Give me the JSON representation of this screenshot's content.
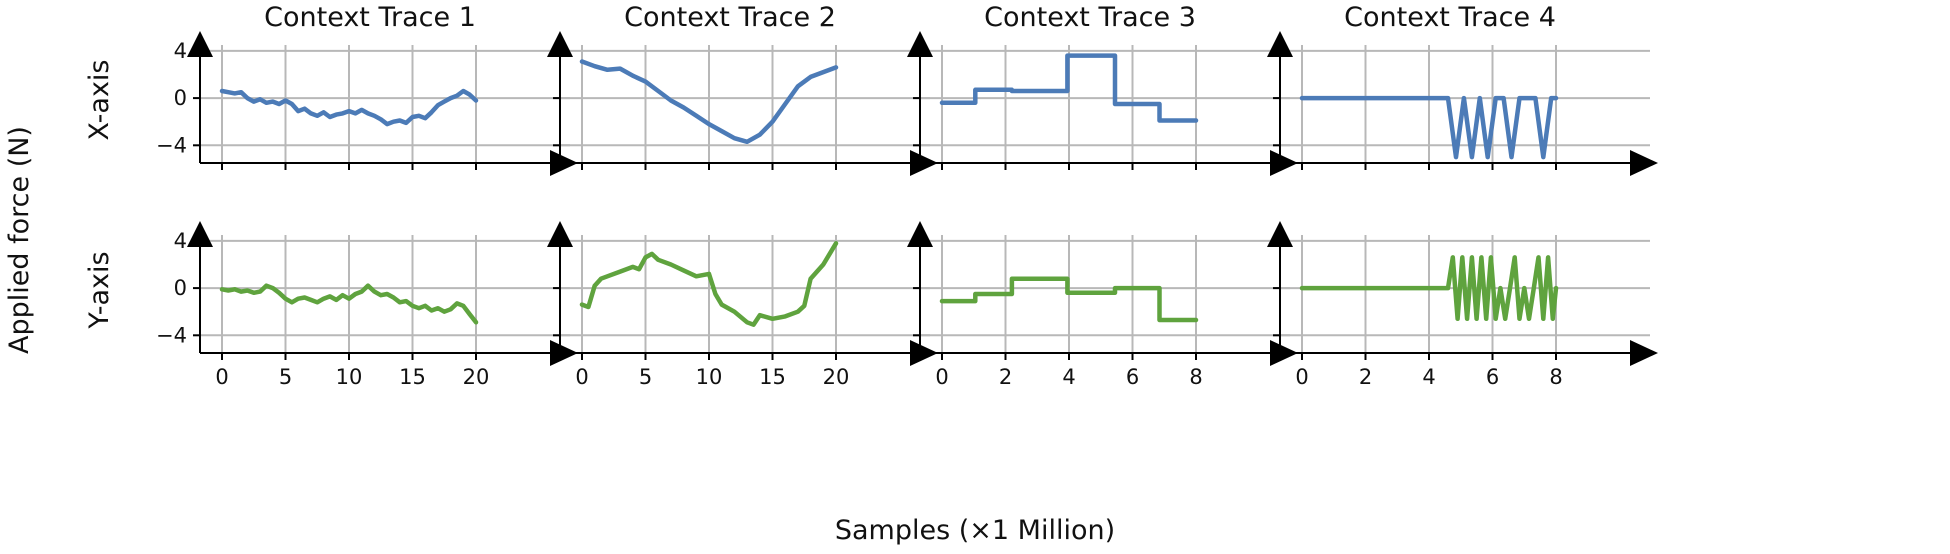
{
  "figure": {
    "ylabel": "Applied force (N)",
    "xlabel": "Samples (×1 Million)",
    "row_labels": [
      "X-axis",
      "Y-axis"
    ],
    "col_titles": [
      "Context Trace 1",
      "Context Trace 2",
      "Context Trace 3",
      "Context Trace 4"
    ]
  },
  "colors": {
    "x_axis": "#4c7bb7",
    "y_axis": "#5fa33e",
    "grid": "#b8b8b8",
    "axis": "#000000"
  },
  "chart_data": [
    {
      "type": "line",
      "title": "Context Trace 1",
      "row": "X-axis",
      "xlim": [
        0,
        20
      ],
      "ylim": [
        -5.5,
        4.5
      ],
      "xticks": [
        0,
        5,
        10,
        15,
        20
      ],
      "yticks": [
        -4,
        0,
        4
      ],
      "grid": true,
      "series": [
        {
          "x": [
            0,
            0.5,
            1,
            1.5,
            2,
            2.5,
            3,
            3.5,
            4,
            4.5,
            5,
            5.5,
            6,
            6.5,
            7,
            7.5,
            8,
            8.5,
            9,
            9.5,
            10,
            10.5,
            11,
            11.5,
            12,
            12.5,
            13,
            13.5,
            14,
            14.5,
            15,
            15.5,
            16,
            16.5,
            17,
            17.5,
            18,
            18.5,
            19,
            19.5,
            20
          ],
          "y": [
            0.6,
            0.5,
            0.4,
            0.5,
            0.0,
            -0.3,
            -0.1,
            -0.4,
            -0.3,
            -0.5,
            -0.2,
            -0.5,
            -1.1,
            -0.9,
            -1.3,
            -1.5,
            -1.2,
            -1.6,
            -1.4,
            -1.3,
            -1.1,
            -1.3,
            -1.0,
            -1.3,
            -1.5,
            -1.8,
            -2.2,
            -2.0,
            -1.9,
            -2.1,
            -1.6,
            -1.5,
            -1.7,
            -1.2,
            -0.6,
            -0.3,
            0.0,
            0.2,
            0.6,
            0.3,
            -0.2
          ]
        }
      ]
    },
    {
      "type": "line",
      "title": "Context Trace 2",
      "row": "X-axis",
      "xlim": [
        0,
        20
      ],
      "ylim": [
        -5.5,
        4.5
      ],
      "xticks": [
        0,
        5,
        10,
        15,
        20
      ],
      "yticks": [
        -4,
        0,
        4
      ],
      "grid": true,
      "series": [
        {
          "x": [
            0,
            1,
            2,
            3,
            4,
            5,
            6,
            7,
            8,
            9,
            10,
            11,
            12,
            13,
            14,
            15,
            16,
            17,
            18,
            19,
            20
          ],
          "y": [
            3.1,
            2.7,
            2.4,
            2.5,
            1.9,
            1.4,
            0.6,
            -0.2,
            -0.8,
            -1.5,
            -2.2,
            -2.8,
            -3.4,
            -3.7,
            -3.1,
            -2.0,
            -0.5,
            1.0,
            1.8,
            2.2,
            2.6
          ]
        }
      ]
    },
    {
      "type": "line",
      "title": "Context Trace 3",
      "row": "X-axis",
      "xlim": [
        0,
        8
      ],
      "ylim": [
        -5.5,
        4.5
      ],
      "xticks": [
        0,
        2,
        4,
        6,
        8
      ],
      "yticks": [
        -4,
        0,
        4
      ],
      "grid": true,
      "series": [
        {
          "x": [
            0,
            1.05,
            1.05,
            2.2,
            2.2,
            3.95,
            3.95,
            5.45,
            5.45,
            6.85,
            6.85,
            8.0
          ],
          "y": [
            -0.4,
            -0.4,
            0.7,
            0.7,
            0.6,
            0.6,
            3.6,
            3.6,
            -0.5,
            -0.5,
            -1.9,
            -1.9
          ]
        }
      ]
    },
    {
      "type": "line",
      "title": "Context Trace 4",
      "row": "X-axis",
      "xlim": [
        0,
        8
      ],
      "ylim": [
        -5.5,
        4.5
      ],
      "xticks": [
        0,
        2,
        4,
        6,
        8
      ],
      "yticks": [
        -4,
        0,
        4
      ],
      "grid": true,
      "series": [
        {
          "x": [
            0,
            4.55,
            4.6,
            4.85,
            5.1,
            5.35,
            5.6,
            5.85,
            6.1,
            6.35,
            6.6,
            6.85,
            7.1,
            7.35,
            7.6,
            7.85,
            8.0
          ],
          "y": [
            0,
            0,
            0,
            -5.0,
            0,
            -5.0,
            0,
            -5.0,
            0,
            0,
            -5.0,
            0,
            0,
            0,
            -5.0,
            0,
            0
          ]
        }
      ]
    },
    {
      "type": "line",
      "title": "",
      "row": "Y-axis",
      "xlim": [
        0,
        20
      ],
      "ylim": [
        -5.5,
        4.5
      ],
      "xticks": [
        0,
        5,
        10,
        15,
        20
      ],
      "xticklabels": [
        "0",
        "5",
        "10",
        "15",
        "20"
      ],
      "yticks": [
        -4,
        0,
        4
      ],
      "grid": true,
      "series": [
        {
          "x": [
            0,
            0.5,
            1,
            1.5,
            2,
            2.5,
            3,
            3.5,
            4,
            4.5,
            5,
            5.5,
            6,
            6.5,
            7,
            7.5,
            8,
            8.5,
            9,
            9.5,
            10,
            10.5,
            11,
            11.5,
            12,
            12.5,
            13,
            13.5,
            14,
            14.5,
            15,
            15.5,
            16,
            16.5,
            17,
            17.5,
            18,
            18.5,
            19,
            19.5,
            20
          ],
          "y": [
            -0.1,
            -0.2,
            -0.1,
            -0.3,
            -0.2,
            -0.4,
            -0.3,
            0.2,
            0.0,
            -0.4,
            -0.9,
            -1.2,
            -0.9,
            -0.8,
            -1.0,
            -1.2,
            -0.9,
            -0.7,
            -1.0,
            -0.6,
            -0.9,
            -0.5,
            -0.3,
            0.2,
            -0.3,
            -0.6,
            -0.5,
            -0.8,
            -1.2,
            -1.1,
            -1.5,
            -1.7,
            -1.5,
            -1.9,
            -1.7,
            -2.0,
            -1.8,
            -1.3,
            -1.5,
            -2.2,
            -2.9
          ]
        }
      ]
    },
    {
      "type": "line",
      "title": "",
      "row": "Y-axis",
      "xlim": [
        0,
        20
      ],
      "ylim": [
        -5.5,
        4.5
      ],
      "xticks": [
        0,
        5,
        10,
        15,
        20
      ],
      "xticklabels": [
        "0",
        "5",
        "10",
        "15",
        "20"
      ],
      "yticks": [
        -4,
        0,
        4
      ],
      "grid": true,
      "series": [
        {
          "x": [
            0,
            0.5,
            1,
            1.5,
            2,
            3,
            4,
            4.5,
            5,
            5.5,
            6,
            7,
            8,
            9,
            10,
            10.5,
            11,
            12,
            13,
            13.5,
            14,
            15,
            16,
            17,
            17.5,
            18,
            19,
            20
          ],
          "y": [
            -1.4,
            -1.6,
            0.2,
            0.8,
            1.0,
            1.4,
            1.8,
            1.6,
            2.6,
            2.9,
            2.4,
            2.0,
            1.5,
            1.0,
            1.2,
            -0.5,
            -1.4,
            -2.0,
            -2.9,
            -3.1,
            -2.3,
            -2.6,
            -2.4,
            -2.0,
            -1.5,
            0.8,
            2.0,
            3.8
          ]
        }
      ]
    },
    {
      "type": "line",
      "title": "",
      "row": "Y-axis",
      "xlim": [
        0,
        8
      ],
      "ylim": [
        -5.5,
        4.5
      ],
      "xticks": [
        0,
        2,
        4,
        6,
        8
      ],
      "xticklabels": [
        "0",
        "2",
        "4",
        "6",
        "8"
      ],
      "yticks": [
        -4,
        0,
        4
      ],
      "grid": true,
      "series": [
        {
          "x": [
            0,
            1.05,
            1.05,
            2.2,
            2.2,
            3.95,
            3.95,
            5.45,
            5.45,
            6.85,
            6.85,
            8.0
          ],
          "y": [
            -1.1,
            -1.1,
            -0.5,
            -0.5,
            0.8,
            0.8,
            -0.4,
            -0.4,
            0.0,
            0.0,
            -2.7,
            -2.7
          ]
        }
      ]
    },
    {
      "type": "line",
      "title": "",
      "row": "Y-axis",
      "xlim": [
        0,
        8
      ],
      "ylim": [
        -5.5,
        4.5
      ],
      "xticks": [
        0,
        2,
        4,
        6,
        8
      ],
      "xticklabels": [
        "0",
        "2",
        "4",
        "6",
        "8"
      ],
      "yticks": [
        -4,
        0,
        4
      ],
      "grid": true,
      "series": [
        {
          "x": [
            0,
            4.6,
            4.75,
            4.9,
            5.05,
            5.2,
            5.35,
            5.5,
            5.65,
            5.8,
            5.95,
            6.1,
            6.25,
            6.4,
            6.55,
            6.7,
            6.85,
            7.0,
            7.15,
            7.3,
            7.45,
            7.6,
            7.75,
            7.9,
            8.0
          ],
          "y": [
            0,
            0,
            2.6,
            -2.6,
            2.6,
            -2.6,
            2.6,
            -2.6,
            2.6,
            -2.6,
            2.6,
            -2.6,
            0.0,
            -2.6,
            0.0,
            2.6,
            -2.6,
            0.0,
            -2.6,
            0.0,
            2.6,
            -2.6,
            2.6,
            -2.6,
            0.0
          ]
        }
      ]
    }
  ]
}
